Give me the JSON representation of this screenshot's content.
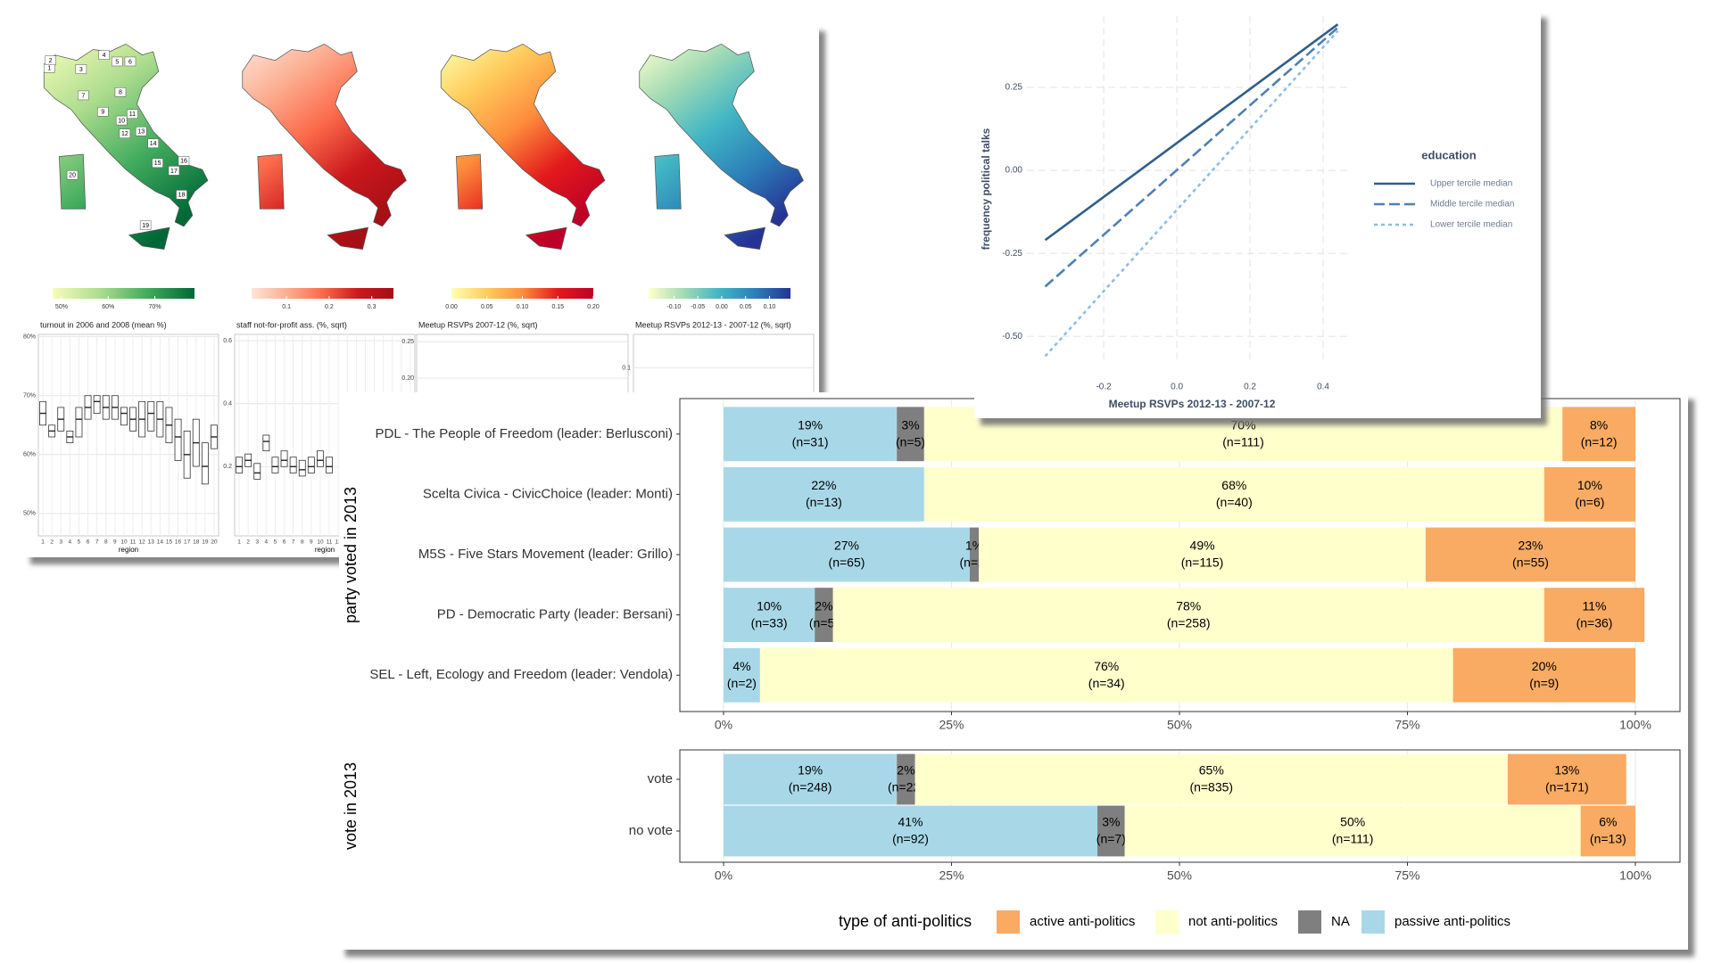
{
  "chart_data": [
    {
      "type": "map_panel",
      "region_labels": [
        "1",
        "2",
        "3",
        "4",
        "5",
        "6",
        "7",
        "8",
        "9",
        "10",
        "11",
        "12",
        "13",
        "14",
        "15",
        "16",
        "17",
        "18",
        "19",
        "20"
      ],
      "colorbars": [
        {
          "xlim": [
            48.1,
            78.5
          ],
          "xticks": [
            {
              "value": 50,
              "label": "50%"
            },
            {
              "value": 60,
              "label": "60%"
            },
            {
              "value": 70,
              "label": "70%"
            }
          ],
          "colors": [
            "#f7fcb9",
            "#addd8e",
            "#41ab5d",
            "#006837"
          ]
        },
        {
          "xlim": [
            0.018,
            0.351
          ],
          "xticks": [
            0.1,
            0.2,
            0.3
          ],
          "colors": [
            "#fee5d9",
            "#fcae91",
            "#fb6a4a",
            "#cb181d",
            "#a50f15"
          ]
        },
        {
          "xlim": [
            0,
            0.2
          ],
          "xticks": [
            {
              "value": 0,
              "label": "0.00"
            },
            0.05,
            {
              "value": 0.1,
              "label": "0.10"
            },
            0.15,
            {
              "value": 0.2,
              "label": "0.20"
            }
          ],
          "colors": [
            "#ffffb2",
            "#fecc5c",
            "#fd8d3c",
            "#e31a1c",
            "#bd0026"
          ]
        },
        {
          "xlim": [
            -0.153,
            0.144
          ],
          "xticks": [
            {
              "value": -0.1,
              "label": "-0.10"
            },
            -0.05,
            {
              "value": 0,
              "label": "0.00"
            },
            0.05,
            {
              "value": 0.1,
              "label": "0.10"
            }
          ],
          "colors": [
            "#ffffcc",
            "#a1dab4",
            "#41b6c4",
            "#2c7fb8",
            "#253494"
          ]
        }
      ]
    },
    {
      "type": "boxplot",
      "title": "turnout in 2006 and 2008 (mean %)",
      "x_label": "region",
      "categories": [
        "1",
        "2",
        "3",
        "4",
        "5",
        "6",
        "7",
        "8",
        "9",
        "10",
        "11",
        "12",
        "13",
        "14",
        "15",
        "16",
        "17",
        "18",
        "19",
        "20"
      ],
      "q1": [
        65,
        63,
        64,
        62,
        63,
        66,
        67,
        66,
        66,
        65,
        64,
        63,
        64,
        63,
        62,
        59,
        56,
        58,
        55,
        61
      ],
      "median": [
        67,
        64,
        66,
        63,
        66,
        68,
        69,
        68,
        68,
        67,
        66,
        66,
        67,
        66,
        65,
        63,
        60,
        62,
        58,
        63
      ],
      "q3": [
        69,
        65,
        68,
        64,
        68,
        70,
        70,
        70,
        70,
        68,
        68,
        69,
        69,
        69,
        68,
        66,
        64,
        66,
        62,
        65
      ],
      "ylim": [
        46.2,
        80.4
      ],
      "yticks": [
        {
          "value": 50,
          "label": "50%"
        },
        {
          "value": 60,
          "label": "60%"
        },
        {
          "value": 70,
          "label": "70%"
        },
        {
          "value": 80,
          "label": "80%"
        }
      ]
    },
    {
      "type": "boxplot",
      "title": "staff not-for-profit ass. (%, sqrt)",
      "x_label": "region",
      "categories": [
        "1",
        "2",
        "3",
        "4",
        "5",
        "6",
        "7",
        "8",
        "9",
        "10",
        "11",
        "12",
        "13",
        "14",
        "15",
        "16",
        "17",
        "18",
        "19",
        "20"
      ],
      "q1": [
        0.18,
        0.2,
        0.16,
        0.25,
        0.18,
        0.2,
        0.18,
        0.17,
        0.18,
        0.2,
        0.18,
        null,
        null,
        null,
        null,
        null,
        null,
        null,
        null,
        null
      ],
      "median": [
        0.2,
        0.22,
        0.18,
        0.28,
        0.2,
        0.22,
        0.2,
        0.19,
        0.2,
        0.22,
        0.2,
        null,
        null,
        null,
        null,
        null,
        null,
        null,
        null,
        null
      ],
      "q3": [
        0.23,
        0.24,
        0.21,
        0.3,
        0.23,
        0.25,
        0.23,
        0.22,
        0.23,
        0.25,
        0.23,
        null,
        null,
        null,
        null,
        null,
        null,
        null,
        null,
        null
      ],
      "ylim": [
        -0.02,
        0.62
      ],
      "yticks": [
        0.2,
        0.4,
        0.6
      ]
    },
    {
      "type": "boxplot",
      "title": "Meetup RSVPs 2007-12 (%, sqrt)",
      "ylim": [
        -0.016,
        0.26
      ],
      "yticks": [
        {
          "value": 0.2,
          "label": "0.20"
        },
        0.25
      ]
    },
    {
      "type": "boxplot",
      "title": "Meetup RSVPs 2012-13 - 2007-12 (%, sqrt)",
      "ylim": [
        -0.35,
        0.19
      ],
      "yticks": [
        0.1
      ]
    },
    {
      "type": "line",
      "x_label": "Meetup RSVPs 2012-13 - 2007-12",
      "y_label": "frequency political talks",
      "x": [
        -0.36,
        0.44
      ],
      "xlim": [
        -0.41,
        0.478
      ],
      "xticks": [
        -0.2,
        {
          "value": 0,
          "label": "0.0"
        },
        0.2,
        0.4
      ],
      "ylim": [
        -0.572,
        0.465
      ],
      "yticks": [
        0.25,
        {
          "value": 0,
          "label": "0.00"
        },
        -0.25,
        {
          "value": -0.5,
          "label": "-0.50"
        }
      ],
      "grid": true,
      "legend_title": "education",
      "series": [
        {
          "name": "Upper tercile median",
          "color": "#2f5f8c",
          "dash": "solid",
          "values": [
            -0.21,
            0.44
          ]
        },
        {
          "name": "Middle tercile median",
          "color": "#4f80b3",
          "dash": "dashed",
          "values": [
            -0.35,
            0.43
          ]
        },
        {
          "name": "Lower tercile median",
          "color": "#8dbde5",
          "dash": "dotted",
          "values": [
            -0.56,
            0.42
          ]
        }
      ]
    },
    {
      "type": "stacked_bar_h",
      "y_label": "party voted in 2013",
      "categories": [
        "PDL - The People of Freedom (leader: Berlusconi)",
        "Scelta Civica - CivicChoice (leader: Monti)",
        "M5S - Five Stars Movement (leader: Grillo)",
        "PD -  Democratic Party (leader: Bersani)",
        "SEL - Left, Ecology and Freedom (leader: Vendola)"
      ],
      "xlim": [
        0,
        100
      ],
      "xticks": [
        {
          "value": 0,
          "label": "0%"
        },
        {
          "value": 25,
          "label": "25%"
        },
        {
          "value": 50,
          "label": "50%"
        },
        {
          "value": 75,
          "label": "75%"
        },
        {
          "value": 100,
          "label": "100%"
        }
      ],
      "grid": true,
      "series": [
        {
          "color": "#f9ab63",
          "values": [
            8,
            10,
            23,
            11,
            20
          ],
          "value_labels": [
            "8%",
            "10%",
            "23%",
            "11%",
            "20%"
          ],
          "n_labels": [
            "(n=12)",
            "(n=6)",
            "(n=55)",
            "(n=36)",
            "(n=9)"
          ]
        },
        {
          "color": "#ffffcc",
          "values": [
            70,
            68,
            49,
            78,
            76
          ],
          "value_labels": [
            "70%",
            "68%",
            "49%",
            "78%",
            "76%"
          ],
          "n_labels": [
            "(n=111)",
            "(n=40)",
            "(n=115)",
            "(n=258)",
            "(n=34)"
          ]
        },
        {
          "color": "#7f7f7f",
          "values": [
            3,
            null,
            1,
            2,
            null
          ],
          "value_labels": [
            "3%",
            null,
            "1%",
            "2%",
            null
          ],
          "n_labels": [
            "(n=5)",
            null,
            "(n=2)",
            "(n=5)",
            null
          ]
        },
        {
          "color": "#a8d8e8",
          "values": [
            19,
            22,
            27,
            10,
            4
          ],
          "value_labels": [
            "19%",
            "22%",
            "27%",
            "10%",
            "4%"
          ],
          "n_labels": [
            "(n=31)",
            "(n=13)",
            "(n=65)",
            "(n=33)",
            "(n=2)"
          ]
        }
      ]
    },
    {
      "type": "stacked_bar_h",
      "y_label": "vote in 2013",
      "categories": [
        "vote",
        "no vote"
      ],
      "xlim": [
        0,
        100
      ],
      "xticks": [
        {
          "value": 0,
          "label": "0%"
        },
        {
          "value": 25,
          "label": "25%"
        },
        {
          "value": 50,
          "label": "50%"
        },
        {
          "value": 75,
          "label": "75%"
        },
        {
          "value": 100,
          "label": "100%"
        }
      ],
      "grid": true,
      "legend_title": "type of anti-politics",
      "series": [
        {
          "name": "active anti-politics",
          "color": "#f9ab63",
          "values": [
            13,
            6
          ],
          "value_labels": [
            "13%",
            "6%"
          ],
          "n_labels": [
            "(n=171)",
            "(n=13)"
          ]
        },
        {
          "name": "not anti-politics",
          "color": "#ffffcc",
          "values": [
            65,
            50
          ],
          "value_labels": [
            "65%",
            "50%"
          ],
          "n_labels": [
            "(n=835)",
            "(n=111)"
          ]
        },
        {
          "name": "NA",
          "color": "#7f7f7f",
          "values": [
            2,
            3
          ],
          "value_labels": [
            "2%",
            "3%"
          ],
          "n_labels": [
            "(n=22)",
            "(n=7)"
          ]
        },
        {
          "name": "passive anti-politics",
          "color": "#a8d8e8",
          "values": [
            19,
            41
          ],
          "value_labels": [
            "19%",
            "41%"
          ],
          "n_labels": [
            "(n=248)",
            "(n=92)"
          ]
        }
      ]
    }
  ]
}
